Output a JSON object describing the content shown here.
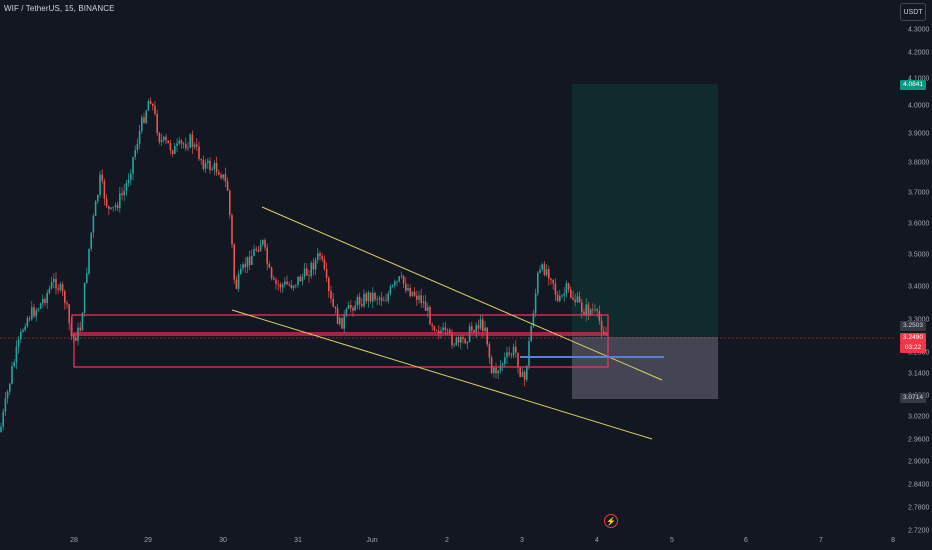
{
  "header": {
    "title": "WIF / TetherUS, 15, BINANCE"
  },
  "toolbar": {
    "currency_button": "USDT"
  },
  "price_axis": {
    "ticks": [
      "4.3000",
      "4.2000",
      "4.1000",
      "4.0000",
      "3.9000",
      "3.8000",
      "3.7000",
      "3.6000",
      "3.5000",
      "3.4000",
      "3.3000",
      "3.2000",
      "3.1400",
      "3.0800",
      "3.0200",
      "2.9600",
      "2.9000",
      "2.8400",
      "2.7800",
      "2.7200"
    ],
    "tags": {
      "take_profit": {
        "text": "4.0841",
        "color": "#089981"
      },
      "last_price": {
        "text": "3.2503",
        "color": "#363a45"
      },
      "current_price": {
        "text": "3.2490",
        "color": "#f23645"
      },
      "countdown": {
        "text": "03:22",
        "color": "#f23645"
      },
      "stop_loss": {
        "text": "3.0714",
        "color": "#363a45"
      }
    }
  },
  "time_axis": {
    "labels": [
      "28",
      "29",
      "30",
      "31",
      "Jun",
      "2",
      "3",
      "4",
      "5",
      "6",
      "7",
      "8"
    ]
  },
  "icons": {
    "lightning": "lightning-icon"
  },
  "colors": {
    "up": "#26a69a",
    "down": "#ef5350",
    "zone": "#f7325e",
    "trendline": "#d8cf6a",
    "entry_line": "#5b7ed8",
    "profit_zone": "#0f2b2d",
    "loss_zone": "#4c4f5a"
  }
}
